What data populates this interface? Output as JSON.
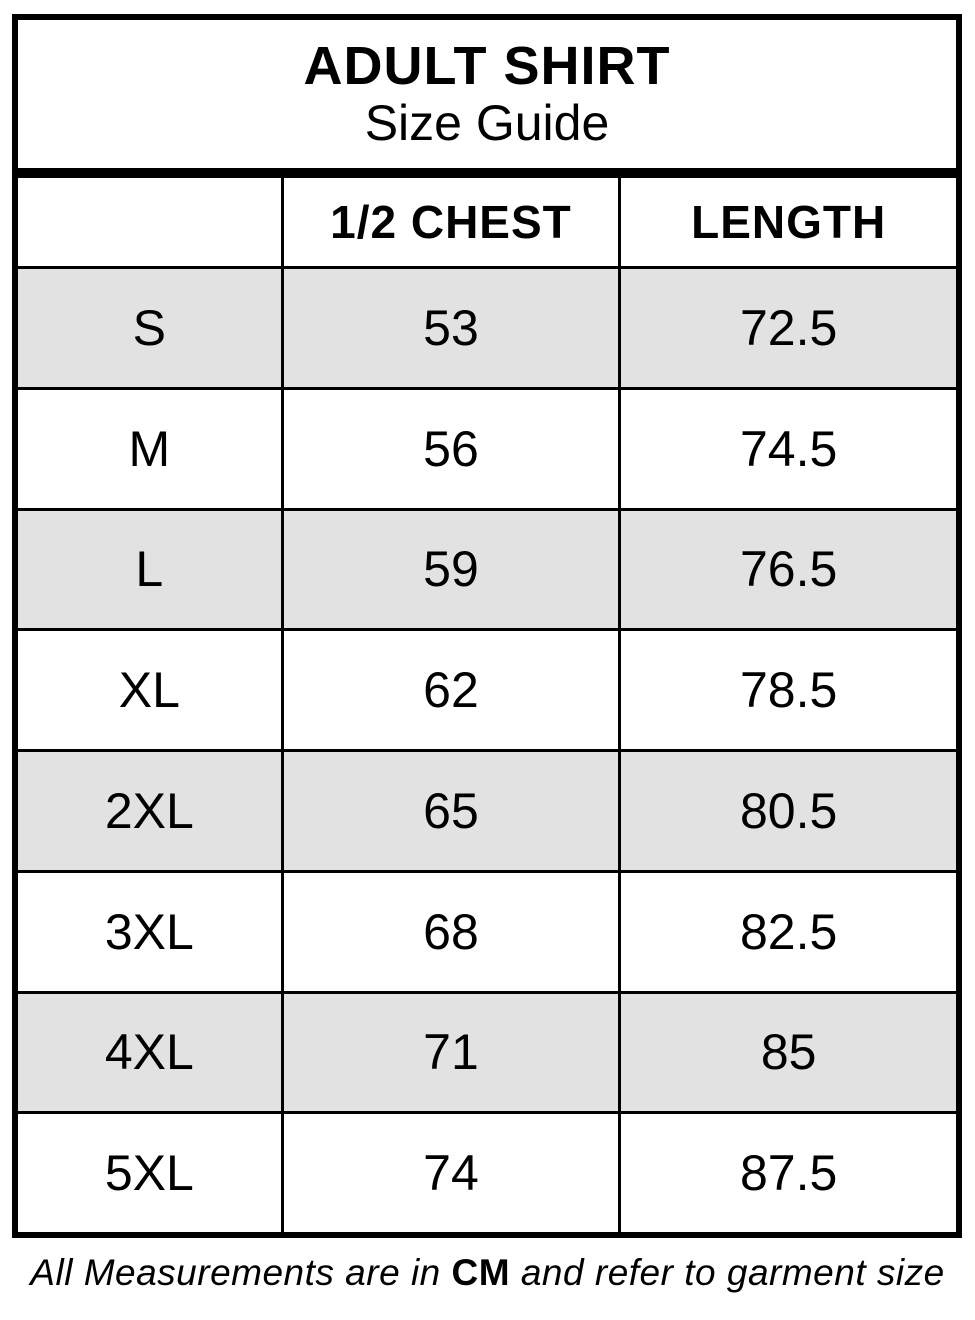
{
  "title": {
    "line1": "ADULT SHIRT",
    "line2": "Size Guide"
  },
  "table": {
    "columns": [
      "",
      "1/2 CHEST",
      "LENGTH"
    ],
    "rows": [
      {
        "size": "S",
        "chest": "53",
        "length": "72.5"
      },
      {
        "size": "M",
        "chest": "56",
        "length": "74.5"
      },
      {
        "size": "L",
        "chest": "59",
        "length": "76.5"
      },
      {
        "size": "XL",
        "chest": "62",
        "length": "78.5"
      },
      {
        "size": "2XL",
        "chest": "65",
        "length": "80.5"
      },
      {
        "size": "3XL",
        "chest": "68",
        "length": "82.5"
      },
      {
        "size": "4XL",
        "chest": "71",
        "length": "85"
      },
      {
        "size": "5XL",
        "chest": "74",
        "length": "87.5"
      }
    ],
    "unit": "CM"
  },
  "footer": {
    "prefix": "All Measurements are in ",
    "unit": "CM",
    "suffix": " and refer to garment size"
  },
  "colors": {
    "border": "#000000",
    "row_alt": "#e2e2e2",
    "background": "#ffffff",
    "text": "#000000"
  }
}
